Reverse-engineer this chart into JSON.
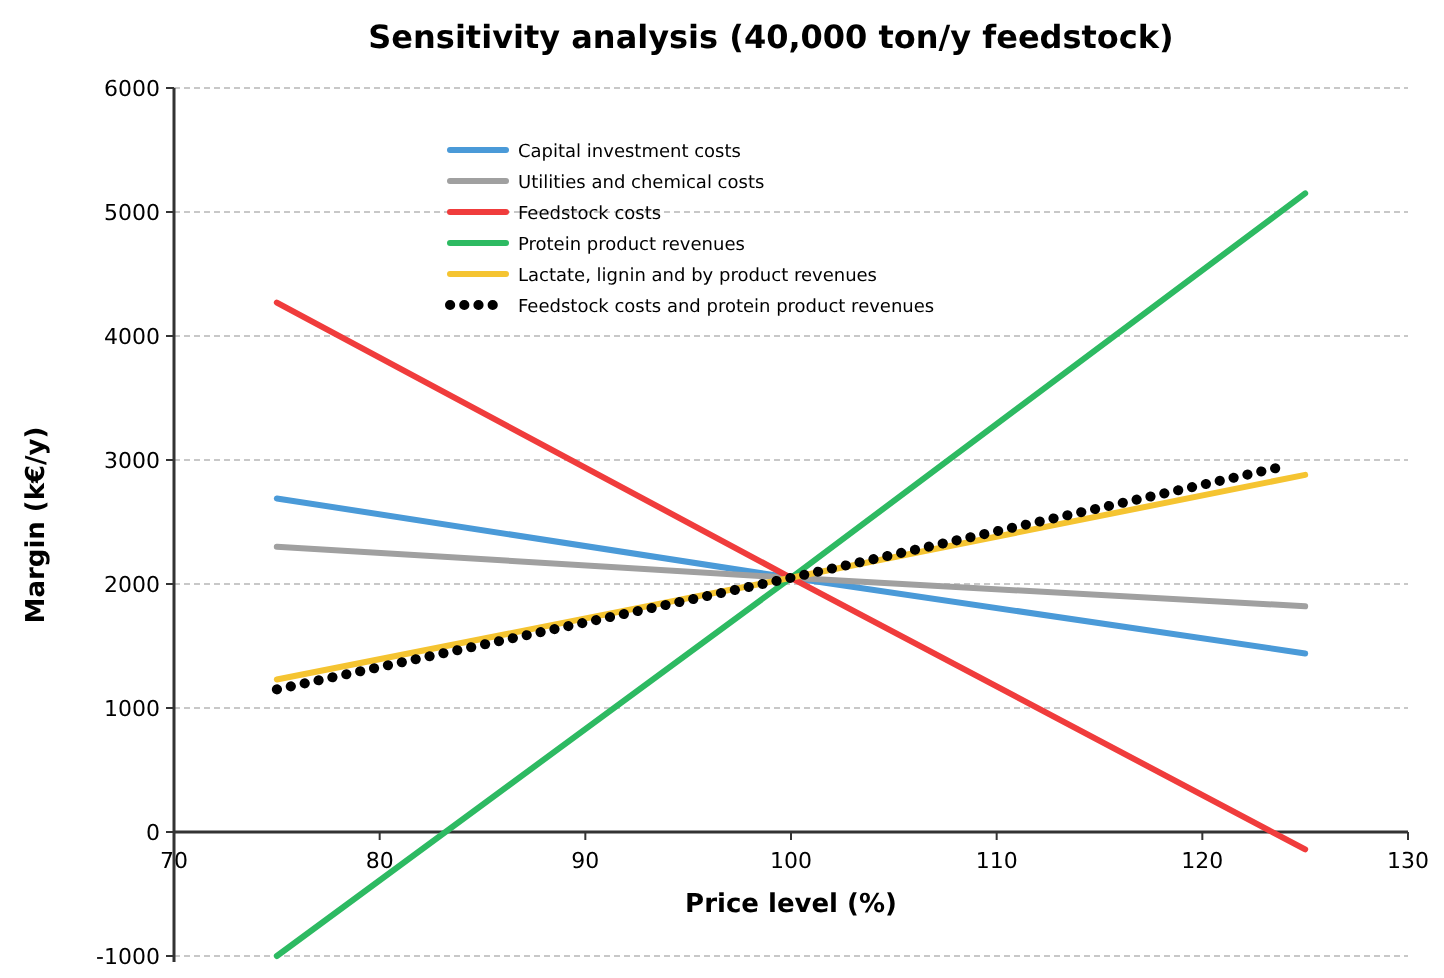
{
  "chart_data": {
    "type": "line",
    "title": "Sensitivity analysis  (40,000 ton/y feedstock)",
    "xlabel": "Price level (%)",
    "ylabel": "Margin (k€/y)",
    "xlim": [
      70,
      130
    ],
    "xticks": [
      70,
      80,
      90,
      100,
      110,
      120,
      130
    ],
    "ylim": [
      -1000,
      6000
    ],
    "yticks": [
      -1000,
      0,
      1000,
      2000,
      3000,
      4000,
      5000,
      6000
    ],
    "grid": "y",
    "legend": "top",
    "marker": "none",
    "series": [
      {
        "name": "Capital investment costs",
        "color": "#4a9ad8",
        "x": [
          75,
          100,
          125
        ],
        "values": [
          2690,
          2050,
          1440
        ]
      },
      {
        "name": "Utilities and chemical costs",
        "color": "#a0a0a0",
        "x": [
          75,
          100,
          125
        ],
        "values": [
          2300,
          2050,
          1820
        ]
      },
      {
        "name": "Feedstock costs",
        "color": "#f03c3c",
        "x": [
          75,
          100,
          125
        ],
        "values": [
          4270,
          2050,
          -140
        ]
      },
      {
        "name": "Protein product revenues",
        "color": "#2dba62",
        "x": [
          75,
          100,
          125
        ],
        "values": [
          -1000,
          2050,
          5150
        ]
      },
      {
        "name": "Lactate, lignin and by product revenues",
        "color": "#f5c431",
        "x": [
          75,
          100,
          125
        ],
        "values": [
          1230,
          2050,
          2880
        ]
      },
      {
        "name": "Feedstock costs and protein product revenues",
        "color": "#000000",
        "line_style": "dotted",
        "x": [
          75,
          100,
          124
        ],
        "values": [
          1150,
          2050,
          2950
        ]
      }
    ]
  }
}
